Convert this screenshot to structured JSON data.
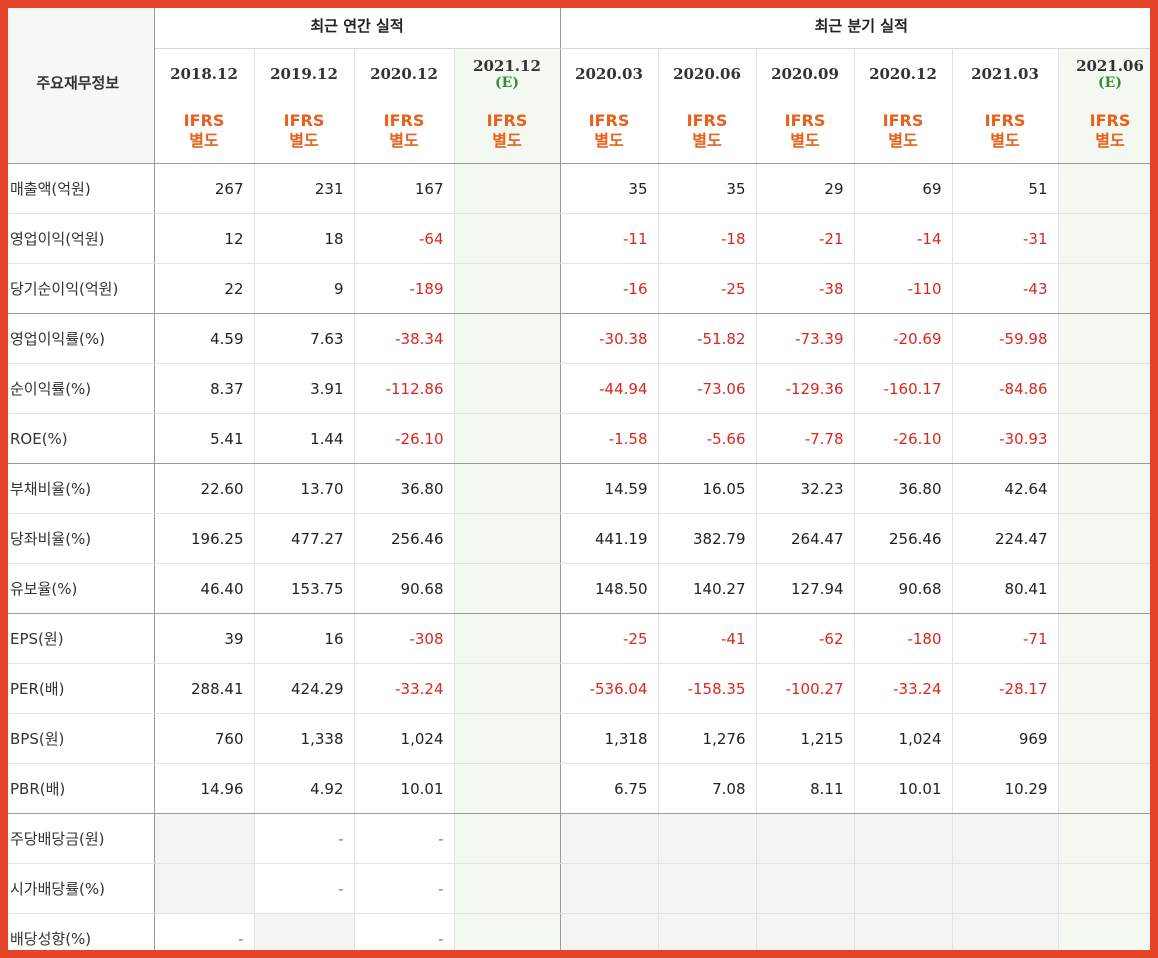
{
  "header": {
    "corner_label": "주요재무정보",
    "annual_title": "최근 연간 실적",
    "quarterly_title": "최근 분기 실적",
    "periods": [
      {
        "label": "2018.12",
        "est": ""
      },
      {
        "label": "2019.12",
        "est": ""
      },
      {
        "label": "2020.12",
        "est": ""
      },
      {
        "label": "2021.12",
        "est": "(E)"
      },
      {
        "label": "2020.03",
        "est": ""
      },
      {
        "label": "2020.06",
        "est": ""
      },
      {
        "label": "2020.09",
        "est": ""
      },
      {
        "label": "2020.12",
        "est": ""
      },
      {
        "label": "2021.03",
        "est": ""
      },
      {
        "label": "2021.06",
        "est": "(E)"
      }
    ],
    "ifrs_line1": "IFRS",
    "ifrs_line2": "별도"
  },
  "rows": [
    {
      "label": "매출액(억원)",
      "values": [
        "267",
        "231",
        "167",
        "",
        "35",
        "35",
        "29",
        "69",
        "51",
        ""
      ],
      "group_end": false
    },
    {
      "label": "영업이익(억원)",
      "values": [
        "12",
        "18",
        "-64",
        "",
        "-11",
        "-18",
        "-21",
        "-14",
        "-31",
        ""
      ],
      "group_end": false
    },
    {
      "label": "당기순이익(억원)",
      "values": [
        "22",
        "9",
        "-189",
        "",
        "-16",
        "-25",
        "-38",
        "-110",
        "-43",
        ""
      ],
      "group_end": true
    },
    {
      "label": "영업이익률(%)",
      "values": [
        "4.59",
        "7.63",
        "-38.34",
        "",
        "-30.38",
        "-51.82",
        "-73.39",
        "-20.69",
        "-59.98",
        ""
      ],
      "group_end": false
    },
    {
      "label": "순이익률(%)",
      "values": [
        "8.37",
        "3.91",
        "-112.86",
        "",
        "-44.94",
        "-73.06",
        "-129.36",
        "-160.17",
        "-84.86",
        ""
      ],
      "group_end": false
    },
    {
      "label": "ROE(%)",
      "values": [
        "5.41",
        "1.44",
        "-26.10",
        "",
        "-1.58",
        "-5.66",
        "-7.78",
        "-26.10",
        "-30.93",
        ""
      ],
      "group_end": true
    },
    {
      "label": "부채비율(%)",
      "values": [
        "22.60",
        "13.70",
        "36.80",
        "",
        "14.59",
        "16.05",
        "32.23",
        "36.80",
        "42.64",
        ""
      ],
      "group_end": false
    },
    {
      "label": "당좌비율(%)",
      "values": [
        "196.25",
        "477.27",
        "256.46",
        "",
        "441.19",
        "382.79",
        "264.47",
        "256.46",
        "224.47",
        ""
      ],
      "group_end": false
    },
    {
      "label": "유보율(%)",
      "values": [
        "46.40",
        "153.75",
        "90.68",
        "",
        "148.50",
        "140.27",
        "127.94",
        "90.68",
        "80.41",
        ""
      ],
      "group_end": true
    },
    {
      "label": "EPS(원)",
      "values": [
        "39",
        "16",
        "-308",
        "",
        "-25",
        "-41",
        "-62",
        "-180",
        "-71",
        ""
      ],
      "group_end": false
    },
    {
      "label": "PER(배)",
      "values": [
        "288.41",
        "424.29",
        "-33.24",
        "",
        "-536.04",
        "-158.35",
        "-100.27",
        "-33.24",
        "-28.17",
        ""
      ],
      "group_end": false
    },
    {
      "label": "BPS(원)",
      "values": [
        "760",
        "1,338",
        "1,024",
        "",
        "1,318",
        "1,276",
        "1,215",
        "1,024",
        "969",
        ""
      ],
      "group_end": false
    },
    {
      "label": "PBR(배)",
      "values": [
        "14.96",
        "4.92",
        "10.01",
        "",
        "6.75",
        "7.08",
        "8.11",
        "10.01",
        "10.29",
        ""
      ],
      "group_end": true
    },
    {
      "label": "주당배당금(원)",
      "values": [
        "#",
        "-",
        "-",
        "#",
        "#",
        "#",
        "#",
        "#",
        "#",
        "#"
      ],
      "group_end": false
    },
    {
      "label": "시가배당률(%)",
      "values": [
        "#",
        "-",
        "-",
        "#",
        "#",
        "#",
        "#",
        "#",
        "#",
        "#"
      ],
      "group_end": false
    },
    {
      "label": "배당성향(%)",
      "values": [
        "-",
        "#",
        "-",
        "#",
        "#",
        "#",
        "#",
        "#",
        "#",
        "#"
      ],
      "group_end": false
    }
  ],
  "colors": {
    "frame": "#e5442b",
    "negative": "#d8281e",
    "ifrs": "#e8601c",
    "estimate": "#3a8a3a"
  }
}
